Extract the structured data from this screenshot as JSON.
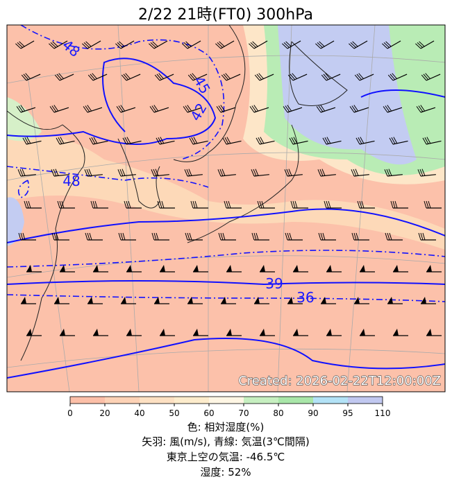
{
  "header": {
    "title": "2/22  21時(FT0)     300hPa"
  },
  "map": {
    "contour_labels": [
      "48",
      "45",
      "42",
      "48",
      "39",
      "36"
    ],
    "created": "Created: 2026-02-22T12:00:00Z"
  },
  "colorbar": {
    "ticks": [
      "0",
      "20",
      "40",
      "50",
      "60",
      "70",
      "80",
      "90",
      "95",
      "110"
    ]
  },
  "caption": [
    "色: 相対湿度(%)",
    "矢羽: 風(m/s),  青線: 気温(3℃間隔)",
    "東京上空の気温: -46.5℃",
    "湿度: 52%"
  ]
}
